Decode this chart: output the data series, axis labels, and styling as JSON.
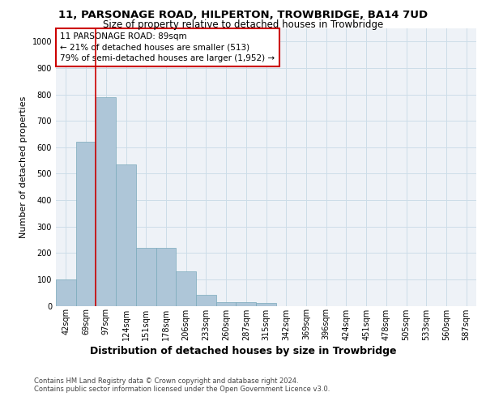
{
  "title1": "11, PARSONAGE ROAD, HILPERTON, TROWBRIDGE, BA14 7UD",
  "title2": "Size of property relative to detached houses in Trowbridge",
  "xlabel": "Distribution of detached houses by size in Trowbridge",
  "ylabel": "Number of detached properties",
  "categories": [
    "42sqm",
    "69sqm",
    "97sqm",
    "124sqm",
    "151sqm",
    "178sqm",
    "206sqm",
    "233sqm",
    "260sqm",
    "287sqm",
    "315sqm",
    "342sqm",
    "369sqm",
    "396sqm",
    "424sqm",
    "451sqm",
    "478sqm",
    "505sqm",
    "533sqm",
    "560sqm",
    "587sqm"
  ],
  "values": [
    100,
    620,
    790,
    535,
    220,
    220,
    130,
    42,
    15,
    13,
    10,
    0,
    0,
    0,
    0,
    0,
    0,
    0,
    0,
    0,
    0
  ],
  "bar_color": "#aec6d8",
  "bar_edge_color": "#7aaabb",
  "vline_color": "#cc0000",
  "vline_x_index": 1.5,
  "annotation_text": "11 PARSONAGE ROAD: 89sqm\n← 21% of detached houses are smaller (513)\n79% of semi-detached houses are larger (1,952) →",
  "annotation_box_facecolor": "#ffffff",
  "annotation_box_edgecolor": "#cc0000",
  "ylim": [
    0,
    1050
  ],
  "yticks": [
    0,
    100,
    200,
    300,
    400,
    500,
    600,
    700,
    800,
    900,
    1000
  ],
  "grid_color": "#ccdde8",
  "bg_color": "#eef2f7",
  "footer_text": "Contains HM Land Registry data © Crown copyright and database right 2024.\nContains public sector information licensed under the Open Government Licence v3.0.",
  "title1_fontsize": 9.5,
  "title2_fontsize": 8.5,
  "ylabel_fontsize": 8,
  "xlabel_fontsize": 9,
  "tick_fontsize": 7,
  "footer_fontsize": 6
}
